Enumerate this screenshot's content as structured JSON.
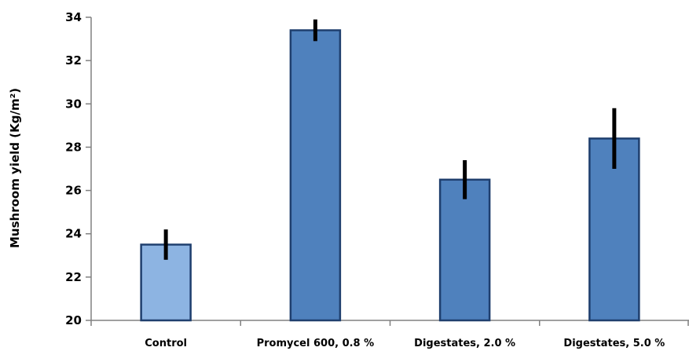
{
  "chart_data": {
    "type": "bar",
    "title": "",
    "xlabel": "",
    "ylabel": "Mushroom yield (Kg/m²)",
    "ylim": [
      20,
      34
    ],
    "yticks": [
      20,
      22,
      24,
      26,
      28,
      30,
      32,
      34
    ],
    "grid": false,
    "legend": "none",
    "categories": [
      "Control",
      "Promycel 600, 0.8 %",
      "Digestates, 2.0 %",
      "Digestates, 5.0 %"
    ],
    "values": [
      23.5,
      33.4,
      26.5,
      28.4
    ],
    "error": [
      0.7,
      0.5,
      0.9,
      1.4
    ],
    "colors": [
      "#8db4e2",
      "#4f81bd",
      "#4f81bd",
      "#4f81bd"
    ],
    "edge_color": "#1f3f6e",
    "error_color": "#000000"
  }
}
